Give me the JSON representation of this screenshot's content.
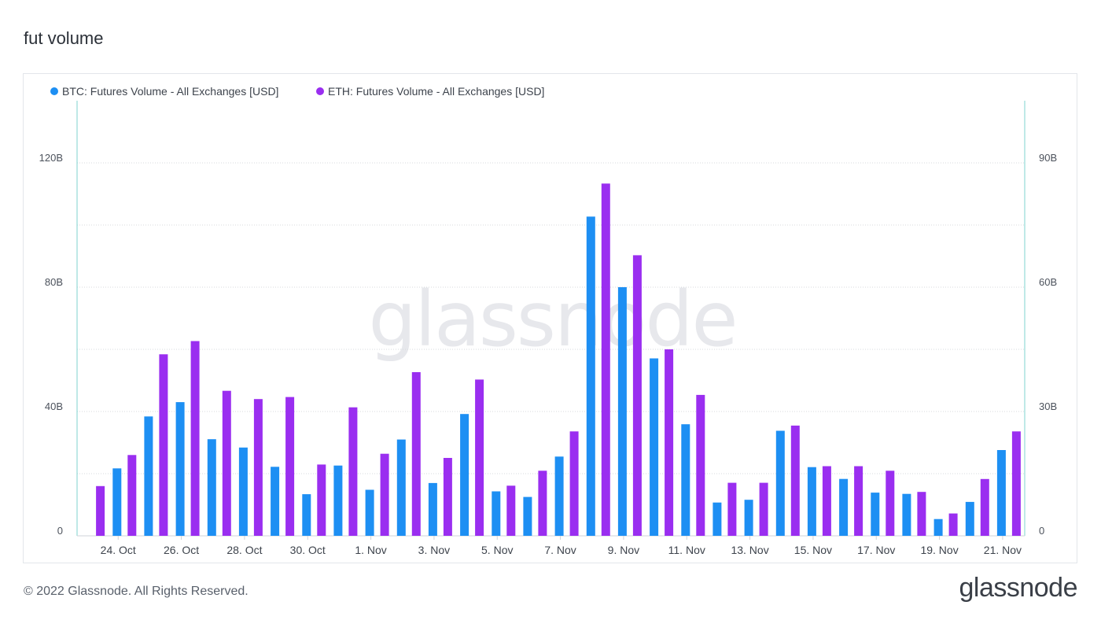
{
  "page": {
    "title": "fut volume",
    "copyright": "© 2022 Glassnode. All Rights Reserved.",
    "logo_text": "glassnode",
    "watermark_text": "glassnode"
  },
  "colors": {
    "btc": "#1d8ff3",
    "eth": "#9a2ef0",
    "grid": "#d7dade",
    "axis": "#7fd3cf"
  },
  "chart_data": {
    "type": "bar",
    "title": "",
    "xlabel": "",
    "ylabel": "",
    "grid": true,
    "legend_position": "top-left",
    "left_axis": {
      "ylim": [
        0,
        140
      ],
      "ticks": [
        {
          "v": 0,
          "label": "0"
        },
        {
          "v": 40,
          "label": "40B"
        },
        {
          "v": 80,
          "label": "80B"
        },
        {
          "v": 120,
          "label": "120B"
        }
      ]
    },
    "right_axis": {
      "ylim": [
        0,
        105
      ],
      "ticks": [
        {
          "v": 0,
          "label": "0"
        },
        {
          "v": 30,
          "label": "30B"
        },
        {
          "v": 60,
          "label": "60B"
        },
        {
          "v": 90,
          "label": "90B"
        }
      ]
    },
    "x_start_offset": 0,
    "dates": [
      "23 Oct",
      "24 Oct",
      "25 Oct",
      "26 Oct",
      "27 Oct",
      "28 Oct",
      "29 Oct",
      "30 Oct",
      "31 Oct",
      "1 Nov",
      "2 Nov",
      "3 Nov",
      "4 Nov",
      "5 Nov",
      "6 Nov",
      "7 Nov",
      "8 Nov",
      "9 Nov",
      "10 Nov",
      "11 Nov",
      "12 Nov",
      "13 Nov",
      "14 Nov",
      "15 Nov",
      "16 Nov",
      "17 Nov",
      "18 Nov",
      "19 Nov",
      "20 Nov",
      "21 Nov"
    ],
    "x_tick_labels": [
      {
        "index": 1,
        "label": "24. Oct"
      },
      {
        "index": 3,
        "label": "26. Oct"
      },
      {
        "index": 5,
        "label": "28. Oct"
      },
      {
        "index": 7,
        "label": "30. Oct"
      },
      {
        "index": 9,
        "label": "1. Nov"
      },
      {
        "index": 11,
        "label": "3. Nov"
      },
      {
        "index": 13,
        "label": "5. Nov"
      },
      {
        "index": 15,
        "label": "7. Nov"
      },
      {
        "index": 17,
        "label": "9. Nov"
      },
      {
        "index": 19,
        "label": "11. Nov"
      },
      {
        "index": 21,
        "label": "13. Nov"
      },
      {
        "index": 23,
        "label": "15. Nov"
      },
      {
        "index": 25,
        "label": "17. Nov"
      },
      {
        "index": 27,
        "label": "19. Nov"
      },
      {
        "index": 29,
        "label": "21. Nov"
      }
    ],
    "series": [
      {
        "name": "BTC: Futures Volume - All Exchanges [USD]",
        "axis": "left",
        "color": "#1d8ff3",
        "values": [
          null,
          21.7,
          38.4,
          43.0,
          31.1,
          28.4,
          22.2,
          13.4,
          22.6,
          14.8,
          31.0,
          17.0,
          39.2,
          14.3,
          12.5,
          25.5,
          102.7,
          80.0,
          57.1,
          35.9,
          10.7,
          11.6,
          33.8,
          22.1,
          18.3,
          13.9,
          13.5,
          5.4,
          10.9,
          27.6
        ]
      },
      {
        "name": "ETH: Futures Volume - All Exchanges [USD]",
        "axis": "right",
        "color": "#9a2ef0",
        "values": [
          12.0,
          19.5,
          43.8,
          47.0,
          35.0,
          33.0,
          33.5,
          17.2,
          31.0,
          19.8,
          39.5,
          18.8,
          37.7,
          12.1,
          15.7,
          25.2,
          85.0,
          67.7,
          45.0,
          34.0,
          12.8,
          12.8,
          26.6,
          16.8,
          16.8,
          15.7,
          10.6,
          5.4,
          13.7,
          25.2
        ]
      }
    ]
  }
}
